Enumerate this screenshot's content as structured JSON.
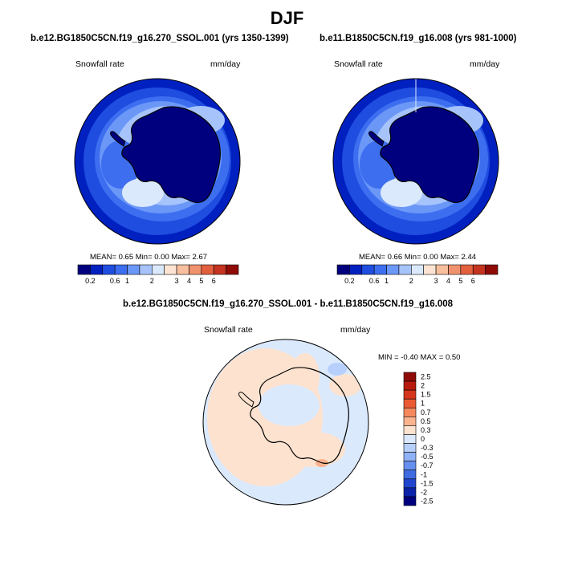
{
  "season_title": "DJF",
  "panels": [
    {
      "title": "b.e12.BG1850C5CN.f19_g16.270_SSOL.001 (yrs 1350-1399)",
      "variable": "Snowfall rate",
      "units": "mm/day",
      "stats": "MEAN=   0.65  Min=   0.00  Max=   2.67",
      "colorbar_labels": [
        "0.2",
        "0.6",
        "1",
        "2",
        "3",
        "4",
        "5",
        "6"
      ]
    },
    {
      "title": "b.e11.B1850C5CN.f19_g16.008 (yrs 981-1000)",
      "variable": "Snowfall rate",
      "units": "mm/day",
      "stats": "MEAN=   0.66  Min=   0.00  Max=   2.44",
      "colorbar_labels": [
        "0.2",
        "0.6",
        "1",
        "2",
        "3",
        "4",
        "5",
        "6"
      ]
    }
  ],
  "difference": {
    "title": "b.e12.BG1850C5CN.f19_g16.270_SSOL.001 - b.e11.B1850C5CN.f19_g16.008",
    "variable": "Snowfall rate",
    "units": "mm/day",
    "stats": "MIN =  -0.40  MAX =   0.50",
    "colorbar_labels": [
      "2.5",
      "2",
      "1.5",
      "1",
      "0.7",
      "0.5",
      "0.3",
      "0",
      "-0.3",
      "-0.5",
      "-0.7",
      "-1",
      "-1.5",
      "-2",
      "-2.5"
    ]
  },
  "colors": {
    "abs_scale": [
      "#00007f",
      "#0020c0",
      "#1f4de0",
      "#3d6ef0",
      "#6b97f7",
      "#a6c4fb",
      "#dbe9fd",
      "#fde4d2",
      "#f7bf9e",
      "#f0926e",
      "#e2603e",
      "#c53420",
      "#8f0b07"
    ],
    "diff_scale": [
      "#8f0b07",
      "#b81a0d",
      "#d7361d",
      "#ec5a33",
      "#f6885e",
      "#fbb38f",
      "#fde3cf",
      "#dbe9fd",
      "#b7d0fb",
      "#8fb2f7",
      "#6690ef",
      "#3f6be2",
      "#1f45cf",
      "#0a23a8",
      "#00007f"
    ],
    "land_abs": "#00007f",
    "land_diff": "#dbe9fd",
    "ocean_diff": "#fde3cf"
  }
}
